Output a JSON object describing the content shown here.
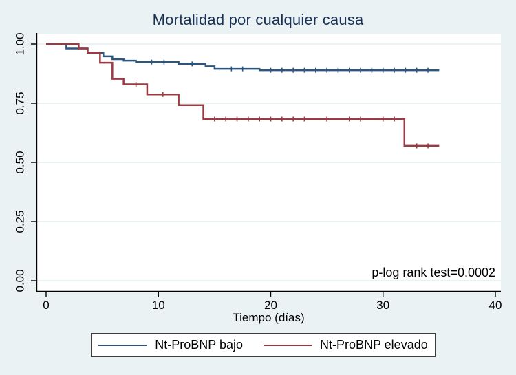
{
  "chart_data": {
    "type": "line",
    "subtype": "kaplan-meier-step",
    "title": "Mortalidad por cualquier causa",
    "xlabel": "Tiempo (días)",
    "ylabel": "",
    "annotation": "p-log rank test=0.0002",
    "xlim": [
      0,
      40
    ],
    "ylim": [
      0.0,
      1.0
    ],
    "x_tick_labels": [
      "0",
      "10",
      "20",
      "30",
      "40"
    ],
    "x_tick_values": [
      0,
      10,
      20,
      30,
      40
    ],
    "y_tick_labels": [
      "0.00",
      "0.25",
      "0.50",
      "0.75",
      "1.00"
    ],
    "y_tick_values": [
      0,
      0.25,
      0.5,
      0.75,
      1
    ],
    "grid": true,
    "legend_position": "bottom",
    "series": [
      {
        "name": "Nt-ProBNP bajo",
        "color": "#2d567f",
        "end_t": 35,
        "steps": [
          [
            0,
            1.0
          ],
          [
            1.8,
            0.981
          ],
          [
            3.7,
            0.963
          ],
          [
            5.1,
            0.948
          ],
          [
            5.9,
            0.936
          ],
          [
            6.9,
            0.93
          ],
          [
            8,
            0.924
          ],
          [
            11.8,
            0.916
          ],
          [
            14.2,
            0.906
          ],
          [
            15,
            0.895
          ],
          [
            19,
            0.889
          ]
        ],
        "censor_ticks": [
          9.4,
          10.5,
          13,
          16.5,
          17.5,
          20,
          21,
          22,
          23,
          24,
          25,
          26,
          27,
          28,
          29,
          30,
          31,
          32,
          33,
          34
        ]
      },
      {
        "name": "Nt-ProBNP elevado",
        "color": "#9b3a40",
        "end_t": 35,
        "steps": [
          [
            0,
            1.0
          ],
          [
            2.9,
            0.981
          ],
          [
            3.7,
            0.963
          ],
          [
            4.8,
            0.921
          ],
          [
            5.9,
            0.853
          ],
          [
            6.9,
            0.83
          ],
          [
            9,
            0.787
          ],
          [
            11.8,
            0.742
          ],
          [
            14,
            0.683
          ],
          [
            31.9,
            0.57
          ]
        ],
        "censor_ticks": [
          8,
          10.4,
          15,
          16,
          17,
          18,
          19,
          20,
          21,
          22,
          23,
          25,
          27,
          28,
          30,
          31,
          33,
          34
        ]
      }
    ]
  },
  "colors": {
    "background": "#eaf2f3",
    "plot_bg": "#ffffff",
    "grid": "#dfeaee",
    "axis": "#000000",
    "title": "#1a3256",
    "text": "#000000",
    "legend_border": "#3d3d3d"
  }
}
